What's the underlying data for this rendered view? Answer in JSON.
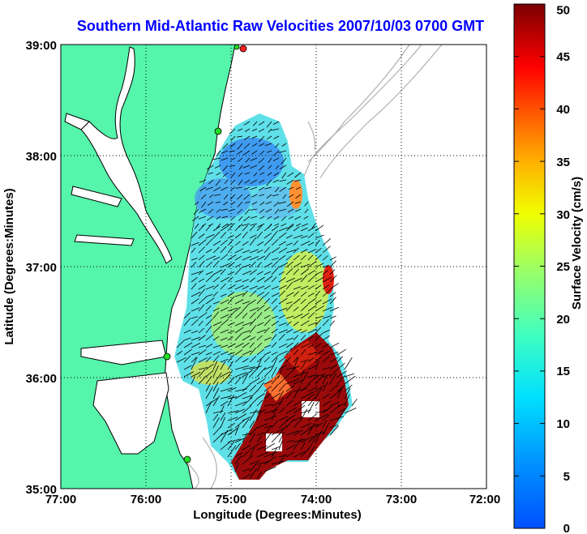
{
  "title": "Southern Mid-Atlantic Raw Velocities 2007/10/03 0700 GMT",
  "x_axis_label": "Longitude (Degrees:Minutes)",
  "y_axis_label": "Latitude (Degrees:Minutes)",
  "x_ticks": [
    "77:00",
    "76:00",
    "75:00",
    "74:00",
    "73:00",
    "72:00"
  ],
  "y_ticks": [
    "39:00",
    "38:00",
    "37:00",
    "36:00",
    "35:00"
  ],
  "colorbar": {
    "label": "Surface Velocity (cm/s)",
    "ticks": [
      "50",
      "45",
      "40",
      "35",
      "30",
      "25",
      "20",
      "15",
      "10",
      "5",
      "0"
    ],
    "range": [
      0,
      50
    ]
  },
  "map_extent": {
    "lon": [
      -77,
      -72
    ],
    "lat": [
      35,
      39
    ]
  },
  "colors": {
    "land": "#55f5ab",
    "ocean": "#ffffff",
    "coastline": "#000000",
    "bathymetry": "#b0b0b0",
    "title": "#0000ff",
    "station_green": "#22dd22",
    "station_red": "#ff2020"
  }
}
